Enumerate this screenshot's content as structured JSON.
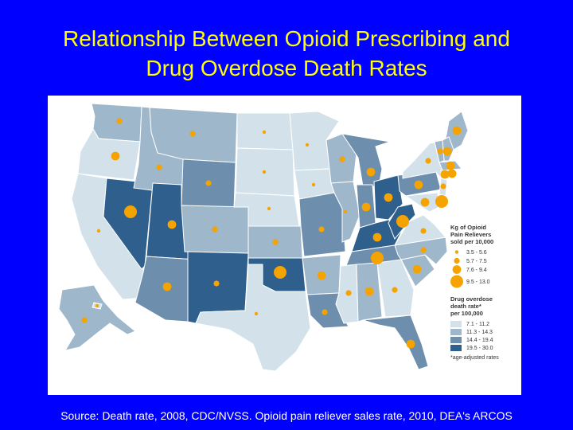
{
  "slide": {
    "title_line1": "Relationship Between Opioid Prescribing and",
    "title_line2": "Drug Overdose Death Rates",
    "source": "Source: Death rate, 2008, CDC/NVSS. Opioid pain reliever sales rate, 2010, DEA's ARCOS"
  },
  "legend": {
    "sales_title": [
      "Kg of Opioid",
      "Pain Relievers",
      "sold per 10,000"
    ],
    "sales_bins": [
      "3.5 - 5.6",
      "5.7 - 7.5",
      "7.6 - 9.4",
      "9.5 - 13.0"
    ],
    "death_title": [
      "Drug overdose",
      "death rate*",
      "per 100,000"
    ],
    "death_bins": [
      "7.1 - 11.2",
      "11.3 - 14.3",
      "14.4 - 19.4",
      "19.5 - 30.0"
    ],
    "footnote": "*age-adjusted rates"
  },
  "colors": {
    "death_bins": [
      "#d3e2ea",
      "#9fb7cb",
      "#6d8eac",
      "#2f5f8c"
    ],
    "dot": "#f5a300"
  },
  "map_data": {
    "states": [
      {
        "id": "WA",
        "death_bin": 2,
        "sales_bin": 2
      },
      {
        "id": "OR",
        "death_bin": 1,
        "sales_bin": 3
      },
      {
        "id": "CA",
        "death_bin": 1,
        "sales_bin": 1
      },
      {
        "id": "NV",
        "death_bin": 4,
        "sales_bin": 4
      },
      {
        "id": "ID",
        "death_bin": 2,
        "sales_bin": 2
      },
      {
        "id": "MT",
        "death_bin": 2,
        "sales_bin": 2
      },
      {
        "id": "WY",
        "death_bin": 3,
        "sales_bin": 2
      },
      {
        "id": "UT",
        "death_bin": 4,
        "sales_bin": 3
      },
      {
        "id": "AZ",
        "death_bin": 3,
        "sales_bin": 3
      },
      {
        "id": "CO",
        "death_bin": 2,
        "sales_bin": 2
      },
      {
        "id": "NM",
        "death_bin": 4,
        "sales_bin": 2
      },
      {
        "id": "ND",
        "death_bin": 1,
        "sales_bin": 1
      },
      {
        "id": "SD",
        "death_bin": 1,
        "sales_bin": 1
      },
      {
        "id": "NE",
        "death_bin": 1,
        "sales_bin": 1
      },
      {
        "id": "KS",
        "death_bin": 2,
        "sales_bin": 2
      },
      {
        "id": "OK",
        "death_bin": 4,
        "sales_bin": 4
      },
      {
        "id": "TX",
        "death_bin": 1,
        "sales_bin": 1
      },
      {
        "id": "MN",
        "death_bin": 1,
        "sales_bin": 1
      },
      {
        "id": "IA",
        "death_bin": 1,
        "sales_bin": 1
      },
      {
        "id": "MO",
        "death_bin": 3,
        "sales_bin": 2
      },
      {
        "id": "AR",
        "death_bin": 2,
        "sales_bin": 3
      },
      {
        "id": "LA",
        "death_bin": 3,
        "sales_bin": 2
      },
      {
        "id": "WI",
        "death_bin": 2,
        "sales_bin": 2
      },
      {
        "id": "IL",
        "death_bin": 2,
        "sales_bin": 1
      },
      {
        "id": "MI",
        "death_bin": 3,
        "sales_bin": 3
      },
      {
        "id": "IN",
        "death_bin": 3,
        "sales_bin": 3
      },
      {
        "id": "OH",
        "death_bin": 4,
        "sales_bin": 3
      },
      {
        "id": "KY",
        "death_bin": 4,
        "sales_bin": 3
      },
      {
        "id": "TN",
        "death_bin": 3,
        "sales_bin": 4
      },
      {
        "id": "MS",
        "death_bin": 1,
        "sales_bin": 2
      },
      {
        "id": "AL",
        "death_bin": 2,
        "sales_bin": 3
      },
      {
        "id": "GA",
        "death_bin": 1,
        "sales_bin": 2
      },
      {
        "id": "FL",
        "death_bin": 3,
        "sales_bin": 3
      },
      {
        "id": "SC",
        "death_bin": 2,
        "sales_bin": 3
      },
      {
        "id": "NC",
        "death_bin": 2,
        "sales_bin": 2
      },
      {
        "id": "VA",
        "death_bin": 1,
        "sales_bin": 2
      },
      {
        "id": "WV",
        "death_bin": 4,
        "sales_bin": 4
      },
      {
        "id": "PA",
        "death_bin": 3,
        "sales_bin": 3
      },
      {
        "id": "NY",
        "death_bin": 1,
        "sales_bin": 2
      },
      {
        "id": "ME",
        "death_bin": 2,
        "sales_bin": 3
      },
      {
        "id": "NH",
        "death_bin": 2,
        "sales_bin": 3
      },
      {
        "id": "VT",
        "death_bin": 2,
        "sales_bin": 2
      },
      {
        "id": "MA",
        "death_bin": 2,
        "sales_bin": 3
      },
      {
        "id": "CT",
        "death_bin": 2,
        "sales_bin": 3
      },
      {
        "id": "RI",
        "death_bin": 3,
        "sales_bin": 3
      },
      {
        "id": "NJ",
        "death_bin": 1,
        "sales_bin": 2
      },
      {
        "id": "DE",
        "death_bin": 3,
        "sales_bin": 4
      },
      {
        "id": "MD",
        "death_bin": 1,
        "sales_bin": 3
      },
      {
        "id": "AK",
        "death_bin": 2,
        "sales_bin": 2
      },
      {
        "id": "HI",
        "death_bin": 1,
        "sales_bin": 1
      }
    ]
  }
}
